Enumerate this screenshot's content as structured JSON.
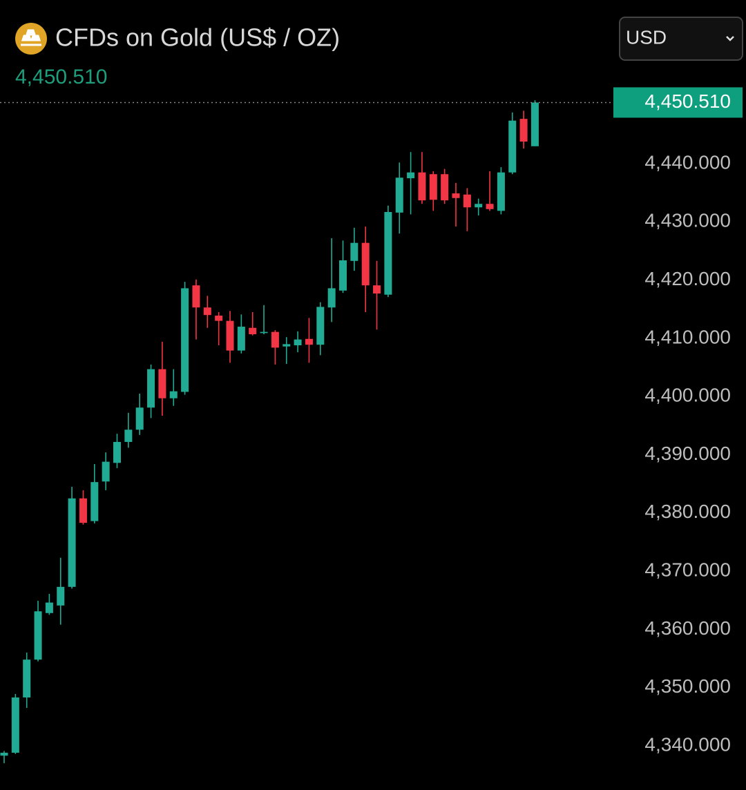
{
  "chart_data": {
    "type": "candlestick",
    "title": "CFDs on Gold (US$ / OZ)",
    "currency": "USD",
    "last_price": {
      "value": 4450.51,
      "label": "4,450.510"
    },
    "up_color": "#22ab94",
    "down_color": "#f23645",
    "open": [
      4338.3,
      4338.8,
      4348.3,
      4354.8,
      4362.8,
      4364.1,
      4367.3,
      4382.5,
      4378.6,
      4385.4,
      4388.6,
      4392.2,
      4394.3,
      4398.1,
      4404.7,
      4399.7,
      4400.8,
      4419.1,
      4415.3,
      4413.9,
      4413.0,
      4407.9,
      4411.8,
      4410.9,
      4411.1,
      4408.6,
      4408.8,
      4409.9,
      4408.9,
      4415.3,
      4418.2,
      4423.3,
      4426.4,
      4419.1,
      4417.5,
      4431.6,
      4437.5,
      4438.5,
      4438.2,
      4438.2,
      4434.9,
      4434.7,
      4432.5,
      4433.1,
      4431.9,
      4438.5,
      4447.7,
      4443.0
    ],
    "high": [
      4339.1,
      4348.9,
      4356.0,
      4364.9,
      4366.1,
      4372.3,
      4384.5,
      4383.9,
      4388.4,
      4390.4,
      4393.6,
      4397.2,
      4400.5,
      4405.5,
      4409.4,
      4404.7,
      4419.7,
      4420.1,
      4417.3,
      4414.5,
      4414.7,
      4414.1,
      4414.5,
      4415.7,
      4411.4,
      4410.2,
      4411.2,
      4413.5,
      4416.2,
      4427.2,
      4426.8,
      4429.0,
      4429.2,
      4423.3,
      4432.8,
      4440.2,
      4442.0,
      4442.0,
      4438.7,
      4439.1,
      4436.7,
      4435.8,
      4434.0,
      4438.7,
      4439.4,
      4448.8,
      4449.1,
      4450.9
    ],
    "low": [
      4337.0,
      4338.6,
      4346.5,
      4354.5,
      4362.5,
      4360.8,
      4367.0,
      4378.0,
      4378.2,
      4383.9,
      4387.7,
      4391.2,
      4393.4,
      4396.3,
      4396.7,
      4398.4,
      4400.3,
      4409.8,
      4411.8,
      4408.8,
      4405.8,
      4407.4,
      4410.5,
      4410.7,
      4405.5,
      4405.6,
      4407.6,
      4405.8,
      4407.1,
      4412.8,
      4417.8,
      4421.6,
      4414.5,
      4411.5,
      4417.1,
      4428.0,
      4431.3,
      4433.1,
      4431.9,
      4433.1,
      4429.2,
      4428.4,
      4431.1,
      4431.9,
      4431.3,
      4438.2,
      4442.6,
      4443.0
    ],
    "close": [
      4338.8,
      4348.3,
      4354.8,
      4363.1,
      4364.6,
      4367.3,
      4382.5,
      4378.3,
      4385.3,
      4388.8,
      4392.2,
      4394.3,
      4398.1,
      4404.7,
      4399.7,
      4400.9,
      4418.6,
      4415.3,
      4414.0,
      4413.0,
      4407.9,
      4412.0,
      4410.7,
      4411.1,
      4408.4,
      4409.0,
      4409.8,
      4408.9,
      4415.4,
      4418.6,
      4423.4,
      4426.4,
      4419.1,
      4417.7,
      4431.7,
      4437.6,
      4438.5,
      4433.7,
      4433.8,
      4433.7,
      4434.1,
      4432.5,
      4433.1,
      4432.2,
      4438.5,
      4447.4,
      4443.8,
      4450.51
    ],
    "ylim": [
      4332.4,
      4452.7
    ],
    "yticks": [
      {
        "value": 4340,
        "label": "4,340.000"
      },
      {
        "value": 4350,
        "label": "4,350.000"
      },
      {
        "value": 4360,
        "label": "4,360.000"
      },
      {
        "value": 4370,
        "label": "4,370.000"
      },
      {
        "value": 4380,
        "label": "4,380.000"
      },
      {
        "value": 4390,
        "label": "4,390.000"
      },
      {
        "value": 4400,
        "label": "4,400.000"
      },
      {
        "value": 4410,
        "label": "4,410.000"
      },
      {
        "value": 4420,
        "label": "4,420.000"
      },
      {
        "value": 4430,
        "label": "4,430.000"
      },
      {
        "value": 4440,
        "label": "4,440.000"
      }
    ]
  }
}
